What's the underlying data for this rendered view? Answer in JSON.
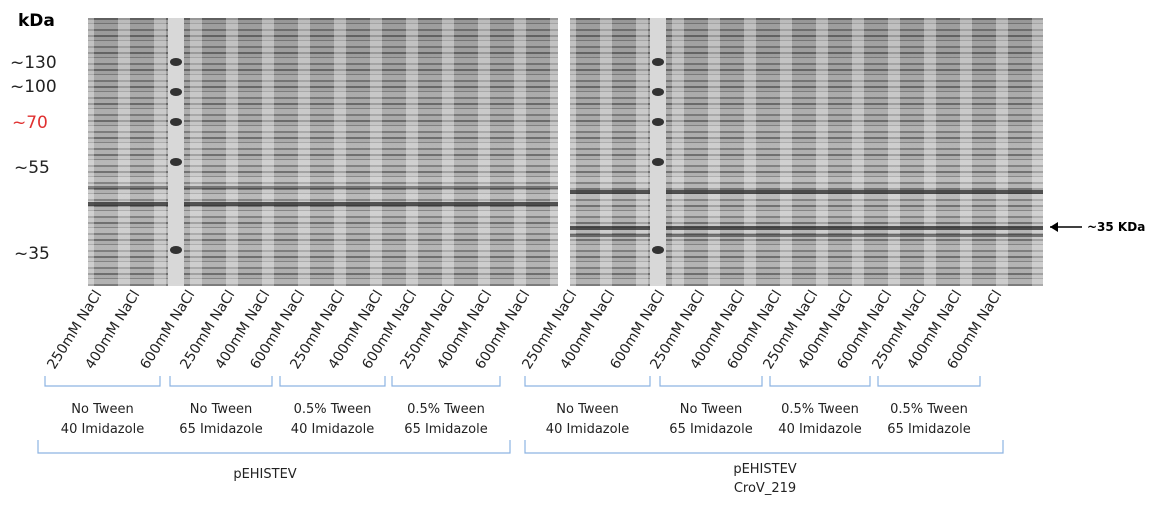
{
  "marker": {
    "unit": "kDa",
    "labels": [
      "~130",
      "~100",
      "~70",
      "~55",
      "~35"
    ]
  },
  "annotation": "~35 KDa",
  "panels": [
    {
      "lanes": [
        "250mM NaCl",
        "400mM NaCl",
        "600mM NaCl",
        "250mM NaCl",
        "400mM NaCl",
        "600mM NaCl",
        "250mM NaCl",
        "400mM NaCl",
        "600mM NaCl",
        "250mM NaCl",
        "400mM NaCl",
        "600mM NaCl"
      ],
      "groups": [
        [
          "No Tween",
          "40 Imidazole"
        ],
        [
          "No Tween",
          "65 Imidazole"
        ],
        [
          "0.5% Tween",
          "40 Imidazole"
        ],
        [
          "0.5% Tween",
          "65 Imidazole"
        ]
      ],
      "construct": [
        "pEHISTEV"
      ]
    },
    {
      "lanes": [
        "250mM NaCl",
        "400mM NaCl",
        "600mM NaCl",
        "250mM NaCl",
        "400mM NaCl",
        "600mM NaCl",
        "250mM NaCl",
        "400mM NaCl",
        "600mM NaCl",
        "250mM NaCl",
        "400mM NaCl",
        "600mM NaCl"
      ],
      "groups": [
        [
          "No Tween",
          "40 Imidazole"
        ],
        [
          "No Tween",
          "65 Imidazole"
        ],
        [
          "0.5% Tween",
          "40 Imidazole"
        ],
        [
          "0.5% Tween",
          "65 Imidazole"
        ]
      ],
      "construct": [
        "pEHISTEV",
        "CroV_219"
      ]
    }
  ]
}
